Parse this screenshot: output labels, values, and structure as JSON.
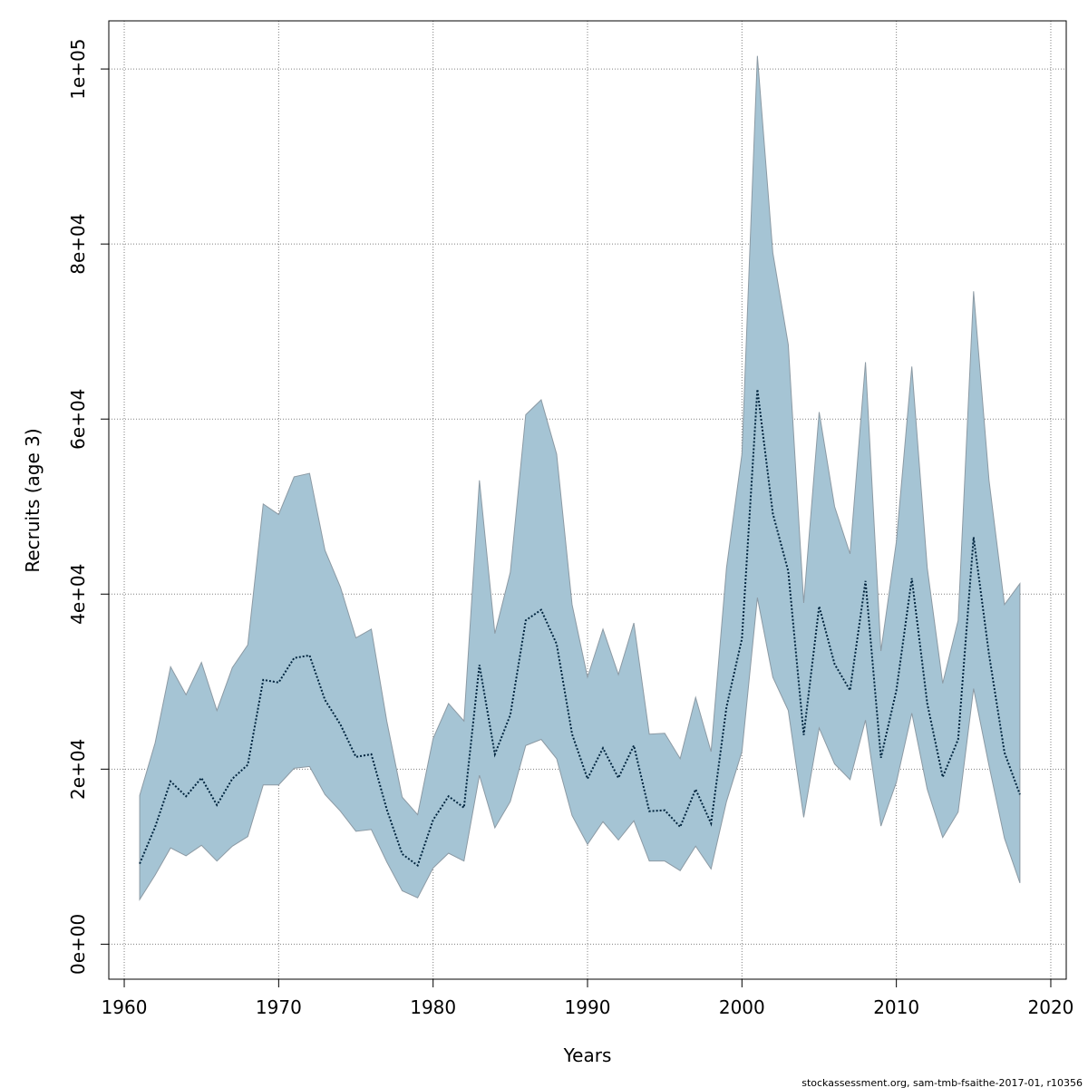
{
  "chart_data": {
    "type": "area",
    "title": "",
    "xlabel": "Years",
    "ylabel": "Recruits (age 3)",
    "xlim": [
      1959,
      2021
    ],
    "ylim": [
      -4000,
      105500
    ],
    "x_ticks": [
      1960,
      1970,
      1980,
      1990,
      2000,
      2010,
      2020
    ],
    "x_tick_labels": [
      "1960",
      "1970",
      "1980",
      "1990",
      "2000",
      "2010",
      "2020"
    ],
    "y_ticks": [
      0,
      20000,
      40000,
      60000,
      80000,
      100000
    ],
    "y_tick_labels": [
      "0e+00",
      "2e+04",
      "4e+04",
      "6e+04",
      "8e+04",
      "1e+05"
    ],
    "grid": true,
    "legend": "none",
    "colors": {
      "band_fill": "#a5c4d4",
      "band_stroke": "#8c9aa4",
      "line": "#00253f",
      "grid": "#808080",
      "axis": "#000000"
    },
    "x": [
      1961,
      1962,
      1963,
      1964,
      1965,
      1966,
      1967,
      1968,
      1969,
      1970,
      1971,
      1972,
      1973,
      1974,
      1975,
      1976,
      1977,
      1978,
      1979,
      1980,
      1981,
      1982,
      1983,
      1984,
      1985,
      1986,
      1987,
      1988,
      1989,
      1990,
      1991,
      1992,
      1993,
      1994,
      1995,
      1996,
      1997,
      1998,
      1999,
      2000,
      2001,
      2002,
      2003,
      2004,
      2005,
      2006,
      2007,
      2008,
      2009,
      2010,
      2011,
      2012,
      2013,
      2014,
      2015,
      2016,
      2017,
      2018
    ],
    "series": [
      {
        "role": "upper",
        "values": [
          17000,
          23000,
          31700,
          28500,
          32200,
          26700,
          31600,
          34200,
          50300,
          49100,
          53400,
          53800,
          45000,
          40800,
          35000,
          36000,
          25500,
          16800,
          14800,
          23500,
          27500,
          25500,
          53000,
          35500,
          42500,
          60500,
          62200,
          56000,
          38800,
          30500,
          36000,
          30800,
          36700,
          24000,
          24100,
          21200,
          28200,
          22000,
          43000,
          56000,
          101500,
          79000,
          68500,
          39000,
          60800,
          50000,
          44600,
          66500,
          33500,
          46000,
          66000,
          43000,
          29800,
          37000,
          74600,
          53000,
          38800,
          41200
        ]
      },
      {
        "role": "estimate",
        "values": [
          9200,
          13400,
          18600,
          16900,
          19000,
          15900,
          18900,
          20500,
          30200,
          29900,
          32700,
          33000,
          27900,
          25100,
          21400,
          21700,
          15400,
          10300,
          9000,
          14200,
          16900,
          15600,
          31900,
          21700,
          26200,
          37000,
          38200,
          34300,
          24000,
          18900,
          22400,
          19000,
          22700,
          15200,
          15300,
          13400,
          17700,
          13800,
          27100,
          34900,
          63400,
          49200,
          42600,
          23900,
          38600,
          32000,
          29000,
          41500,
          21300,
          29000,
          41800,
          27500,
          19100,
          23400,
          46500,
          33100,
          21900,
          17100
        ]
      },
      {
        "role": "lower",
        "values": [
          5100,
          7900,
          11000,
          10100,
          11300,
          9500,
          11200,
          12300,
          18200,
          18200,
          20100,
          20300,
          17100,
          15200,
          12900,
          13100,
          9400,
          6100,
          5300,
          8700,
          10400,
          9500,
          19300,
          13300,
          16300,
          22700,
          23400,
          21200,
          14700,
          11400,
          14000,
          11900,
          14100,
          9500,
          9500,
          8400,
          11200,
          8600,
          16300,
          22000,
          39600,
          30500,
          26700,
          14500,
          24700,
          20600,
          18800,
          25600,
          13500,
          18500,
          26400,
          17700,
          12200,
          15100,
          29200,
          20400,
          12100,
          7000
        ]
      }
    ]
  },
  "footnote": "stockassessment.org, sam-tmb-fsaithe-2017-01, r10356"
}
